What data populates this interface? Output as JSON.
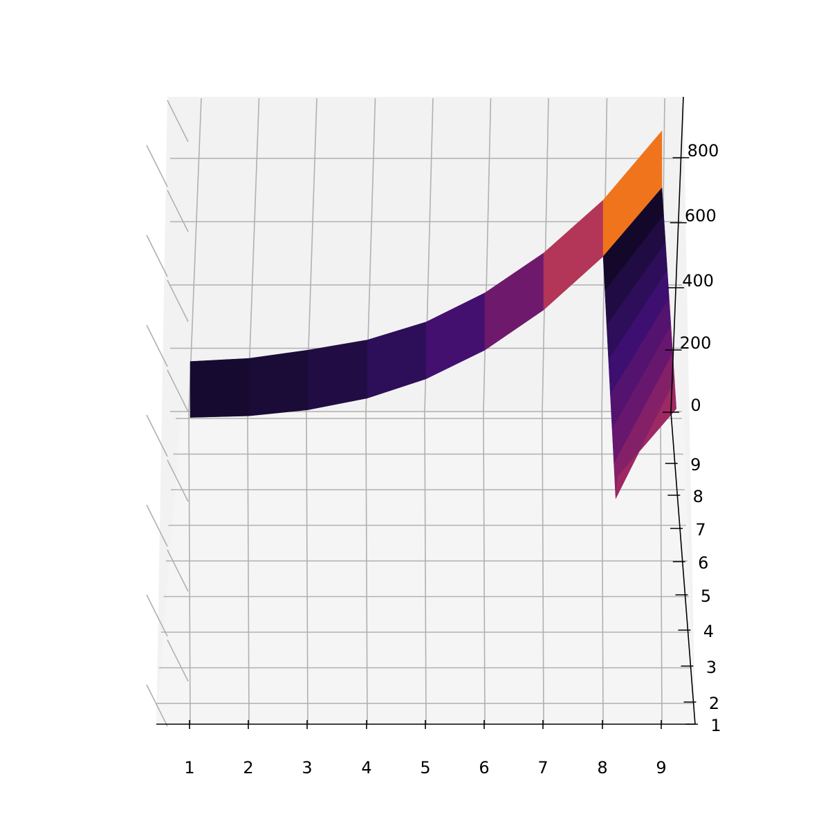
{
  "chart_data": {
    "type": "surface",
    "title": "",
    "xlabel": "",
    "ylabel": "",
    "zlabel": "",
    "colormap": "inferno",
    "x_ticks": [
      "1",
      "2",
      "3",
      "4",
      "5",
      "6",
      "7",
      "8",
      "9"
    ],
    "y_ticks": [
      "1",
      "2",
      "3",
      "4",
      "5",
      "6",
      "7",
      "8",
      "9"
    ],
    "z_ticks": [
      "0",
      "200",
      "400",
      "600",
      "800"
    ],
    "zlim": [
      0,
      960
    ],
    "grid": true,
    "series": [
      {
        "x": 1,
        "y": [
          1,
          1
        ],
        "z": [
          3,
          180
        ]
      },
      {
        "x": 2,
        "y": [
          1,
          1
        ],
        "z": [
          8,
          190
        ]
      },
      {
        "x": 3,
        "y": [
          1,
          1
        ],
        "z": [
          27,
          216
        ]
      },
      {
        "x": 4,
        "y": [
          1,
          1
        ],
        "z": [
          64,
          248
        ]
      },
      {
        "x": 5,
        "y": [
          1,
          1
        ],
        "z": [
          125,
          305
        ]
      },
      {
        "x": 6,
        "y": [
          1,
          1
        ],
        "z": [
          216,
          397
        ]
      },
      {
        "x": 7,
        "y": [
          1,
          1
        ],
        "z": [
          343,
          523
        ]
      },
      {
        "x": 8,
        "y": [
          1,
          2,
          3,
          4,
          5,
          6,
          7,
          8,
          9
        ],
        "z": [
          512,
          512,
          512,
          512,
          512,
          512,
          512,
          512,
          690
        ]
      },
      {
        "x": 9,
        "y": [
          1,
          9
        ],
        "z": [
          729,
          909
        ]
      }
    ]
  },
  "colors": {
    "pane": "#f2f2f2",
    "grid": "#b0b0b0",
    "cmap_stops": [
      "#000004",
      "#1c0c3c",
      "#3b0f70",
      "#6a176e",
      "#a52c60",
      "#d44842",
      "#f37819",
      "#fcb519",
      "#fcffa4"
    ]
  }
}
